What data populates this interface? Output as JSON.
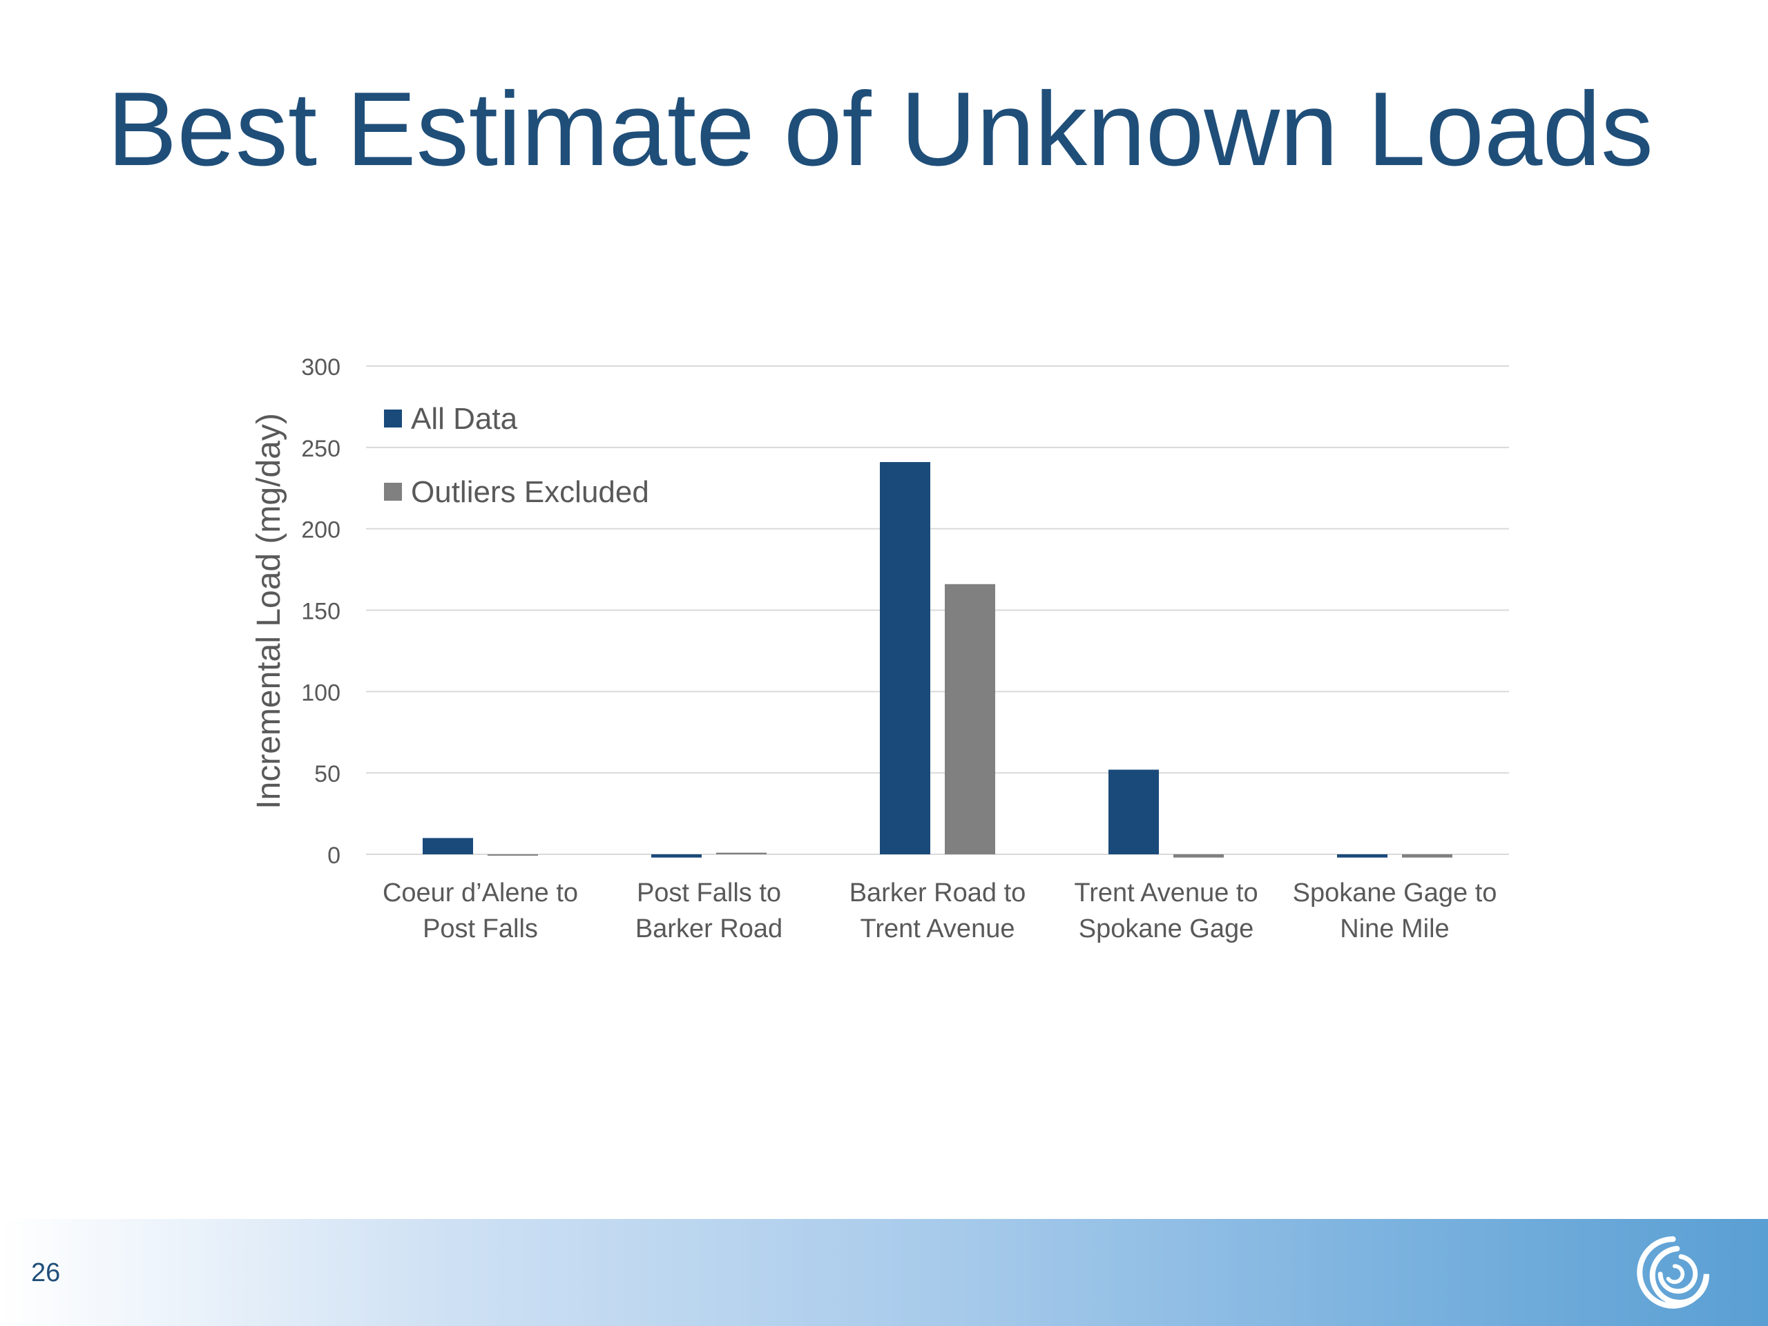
{
  "slide": {
    "title": "Best Estimate of Unknown Loads",
    "page_number": "26"
  },
  "colors": {
    "title": "#1f4e79",
    "all_data": "#1a4a7a",
    "outliers_excluded": "#808080",
    "gridline": "#d9d9d9",
    "tick_text": "#595959"
  },
  "icons": {
    "logo": "circular-swirl-logo"
  },
  "chart_data": {
    "type": "bar",
    "title": "",
    "ylabel": "Incremental Load (mg/day)",
    "xlabel": "",
    "ylim": [
      0,
      300
    ],
    "yticks": [
      0,
      50,
      100,
      150,
      200,
      250,
      300
    ],
    "grid": true,
    "legend_position": "top-left",
    "categories": [
      [
        "Coeur d’Alene to",
        "Post Falls"
      ],
      [
        "Post Falls to",
        "Barker Road"
      ],
      [
        "Barker Road to",
        "Trent Avenue"
      ],
      [
        "Trent Avenue to",
        "Spokane Gage"
      ],
      [
        "Spokane Gage to",
        "Nine Mile"
      ]
    ],
    "series": [
      {
        "name": "All Data",
        "values": [
          10,
          -2,
          241,
          52,
          -2
        ]
      },
      {
        "name": "Outliers Excluded",
        "values": [
          0,
          1,
          166,
          -2,
          -2
        ]
      }
    ]
  }
}
